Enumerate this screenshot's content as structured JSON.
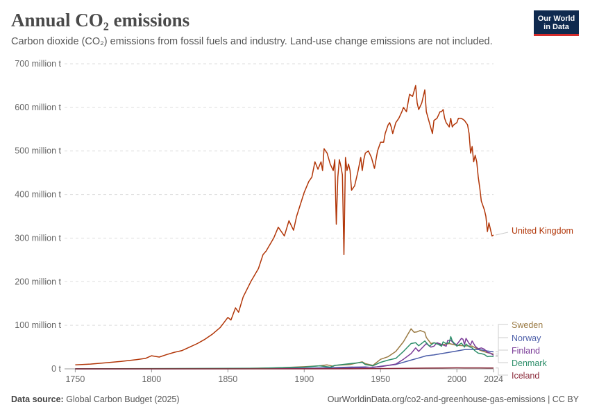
{
  "header": {
    "title": "Annual CO₂ emissions",
    "subtitle": "Carbon dioxide (CO₂) emissions from fossil fuels and industry. Land-use change emissions are not included."
  },
  "logo": {
    "line1": "Our World",
    "line2": "in Data",
    "bg_color": "#0f2a4f",
    "accent_color": "#d42b2b"
  },
  "footer": {
    "source_label": "Data source:",
    "source_value": "Global Carbon Budget (2025)",
    "url": "OurWorldinData.org/co2-and-greenhouse-gas-emissions | CC BY"
  },
  "chart_data": {
    "type": "line",
    "title": "Annual CO₂ emissions",
    "ylim": [
      0,
      700000000
    ],
    "xlim": [
      1743,
      2024
    ],
    "y_ticks": [
      0,
      100000000,
      200000000,
      300000000,
      400000000,
      500000000,
      600000000,
      700000000
    ],
    "y_tick_labels": [
      "0 t",
      "100 million t",
      "200 million t",
      "300 million t",
      "400 million t",
      "500 million t",
      "600 million t",
      "700 million t"
    ],
    "x_ticks": [
      1750,
      1800,
      1850,
      1900,
      1950,
      2000,
      2024
    ],
    "x_tick_labels": [
      "1750",
      "1800",
      "1850",
      "1900",
      "1950",
      "2000",
      "2024"
    ],
    "grid": true,
    "legend": "right (end-of-line labels)",
    "series": [
      {
        "name": "United Kingdom",
        "color": "#b13507",
        "points": [
          [
            1750,
            9000000
          ],
          [
            1760,
            11000000
          ],
          [
            1770,
            14000000
          ],
          [
            1780,
            17000000
          ],
          [
            1790,
            21000000
          ],
          [
            1796,
            24000000
          ],
          [
            1800,
            30000000
          ],
          [
            1805,
            27000000
          ],
          [
            1810,
            33000000
          ],
          [
            1815,
            38000000
          ],
          [
            1820,
            42000000
          ],
          [
            1825,
            50000000
          ],
          [
            1830,
            58000000
          ],
          [
            1835,
            68000000
          ],
          [
            1840,
            80000000
          ],
          [
            1845,
            95000000
          ],
          [
            1850,
            118000000
          ],
          [
            1852,
            112000000
          ],
          [
            1855,
            140000000
          ],
          [
            1857,
            130000000
          ],
          [
            1860,
            165000000
          ],
          [
            1865,
            200000000
          ],
          [
            1870,
            230000000
          ],
          [
            1873,
            262000000
          ],
          [
            1875,
            270000000
          ],
          [
            1880,
            300000000
          ],
          [
            1883,
            325000000
          ],
          [
            1887,
            305000000
          ],
          [
            1890,
            340000000
          ],
          [
            1893,
            318000000
          ],
          [
            1895,
            350000000
          ],
          [
            1900,
            405000000
          ],
          [
            1903,
            430000000
          ],
          [
            1905,
            440000000
          ],
          [
            1907,
            475000000
          ],
          [
            1909,
            458000000
          ],
          [
            1911,
            475000000
          ],
          [
            1912,
            455000000
          ],
          [
            1913,
            505000000
          ],
          [
            1915,
            495000000
          ],
          [
            1917,
            470000000
          ],
          [
            1919,
            455000000
          ],
          [
            1920,
            480000000
          ],
          [
            1921,
            332000000
          ],
          [
            1922,
            440000000
          ],
          [
            1923,
            480000000
          ],
          [
            1924,
            465000000
          ],
          [
            1925,
            445000000
          ],
          [
            1926,
            262000000
          ],
          [
            1927,
            485000000
          ],
          [
            1928,
            455000000
          ],
          [
            1929,
            470000000
          ],
          [
            1930,
            455000000
          ],
          [
            1931,
            410000000
          ],
          [
            1933,
            420000000
          ],
          [
            1935,
            450000000
          ],
          [
            1937,
            485000000
          ],
          [
            1938,
            455000000
          ],
          [
            1939,
            480000000
          ],
          [
            1940,
            495000000
          ],
          [
            1942,
            500000000
          ],
          [
            1944,
            485000000
          ],
          [
            1946,
            460000000
          ],
          [
            1947,
            480000000
          ],
          [
            1948,
            500000000
          ],
          [
            1950,
            520000000
          ],
          [
            1952,
            520000000
          ],
          [
            1953,
            540000000
          ],
          [
            1955,
            560000000
          ],
          [
            1956,
            565000000
          ],
          [
            1957,
            555000000
          ],
          [
            1958,
            540000000
          ],
          [
            1960,
            565000000
          ],
          [
            1962,
            575000000
          ],
          [
            1964,
            590000000
          ],
          [
            1965,
            600000000
          ],
          [
            1967,
            590000000
          ],
          [
            1969,
            630000000
          ],
          [
            1971,
            625000000
          ],
          [
            1973,
            650000000
          ],
          [
            1974,
            610000000
          ],
          [
            1975,
            595000000
          ],
          [
            1977,
            610000000
          ],
          [
            1979,
            640000000
          ],
          [
            1980,
            590000000
          ],
          [
            1982,
            565000000
          ],
          [
            1984,
            540000000
          ],
          [
            1985,
            570000000
          ],
          [
            1987,
            575000000
          ],
          [
            1989,
            590000000
          ],
          [
            1990,
            590000000
          ],
          [
            1991,
            595000000
          ],
          [
            1992,
            575000000
          ],
          [
            1993,
            565000000
          ],
          [
            1995,
            555000000
          ],
          [
            1996,
            575000000
          ],
          [
            1997,
            555000000
          ],
          [
            1998,
            560000000
          ],
          [
            2000,
            565000000
          ],
          [
            2001,
            575000000
          ],
          [
            2003,
            575000000
          ],
          [
            2005,
            570000000
          ],
          [
            2006,
            565000000
          ],
          [
            2007,
            560000000
          ],
          [
            2008,
            540000000
          ],
          [
            2009,
            495000000
          ],
          [
            2010,
            510000000
          ],
          [
            2011,
            475000000
          ],
          [
            2012,
            490000000
          ],
          [
            2013,
            475000000
          ],
          [
            2014,
            440000000
          ],
          [
            2015,
            415000000
          ],
          [
            2016,
            385000000
          ],
          [
            2017,
            375000000
          ],
          [
            2018,
            365000000
          ],
          [
            2019,
            350000000
          ],
          [
            2020,
            315000000
          ],
          [
            2021,
            335000000
          ],
          [
            2022,
            320000000
          ],
          [
            2023,
            305000000
          ],
          [
            2024,
            307000000
          ]
        ]
      },
      {
        "name": "Sweden",
        "color": "#9a7a43",
        "points": [
          [
            1750,
            0
          ],
          [
            1850,
            500000
          ],
          [
            1880,
            2000000
          ],
          [
            1900,
            5000000
          ],
          [
            1910,
            7000000
          ],
          [
            1915,
            9000000
          ],
          [
            1919,
            6000000
          ],
          [
            1920,
            8000000
          ],
          [
            1930,
            10000000
          ],
          [
            1938,
            16000000
          ],
          [
            1940,
            12000000
          ],
          [
            1945,
            8000000
          ],
          [
            1950,
            22000000
          ],
          [
            1955,
            28000000
          ],
          [
            1960,
            40000000
          ],
          [
            1965,
            62000000
          ],
          [
            1968,
            80000000
          ],
          [
            1970,
            92000000
          ],
          [
            1972,
            84000000
          ],
          [
            1974,
            85000000
          ],
          [
            1976,
            88000000
          ],
          [
            1979,
            84000000
          ],
          [
            1980,
            72000000
          ],
          [
            1983,
            58000000
          ],
          [
            1985,
            60000000
          ],
          [
            1990,
            55000000
          ],
          [
            1995,
            58000000
          ],
          [
            2000,
            54000000
          ],
          [
            2005,
            53000000
          ],
          [
            2010,
            52000000
          ],
          [
            2015,
            43000000
          ],
          [
            2020,
            37000000
          ],
          [
            2024,
            34000000
          ]
        ]
      },
      {
        "name": "Norway",
        "color": "#4b5da8",
        "points": [
          [
            1750,
            0
          ],
          [
            1870,
            300000
          ],
          [
            1900,
            1500000
          ],
          [
            1920,
            3000000
          ],
          [
            1930,
            4000000
          ],
          [
            1940,
            4500000
          ],
          [
            1945,
            3000000
          ],
          [
            1950,
            6000000
          ],
          [
            1960,
            10000000
          ],
          [
            1970,
            20000000
          ],
          [
            1975,
            25000000
          ],
          [
            1980,
            30000000
          ],
          [
            1985,
            32000000
          ],
          [
            1990,
            35000000
          ],
          [
            1995,
            38000000
          ],
          [
            2000,
            41000000
          ],
          [
            2005,
            44000000
          ],
          [
            2010,
            45000000
          ],
          [
            2015,
            44000000
          ],
          [
            2020,
            41000000
          ],
          [
            2024,
            39000000
          ]
        ]
      },
      {
        "name": "Finland",
        "color": "#7a3b97",
        "points": [
          [
            1750,
            0
          ],
          [
            1900,
            500000
          ],
          [
            1920,
            1000000
          ],
          [
            1930,
            2000000
          ],
          [
            1940,
            3000000
          ],
          [
            1950,
            5000000
          ],
          [
            1960,
            11000000
          ],
          [
            1965,
            22000000
          ],
          [
            1970,
            35000000
          ],
          [
            1973,
            48000000
          ],
          [
            1975,
            40000000
          ],
          [
            1980,
            58000000
          ],
          [
            1983,
            50000000
          ],
          [
            1985,
            52000000
          ],
          [
            1987,
            60000000
          ],
          [
            1990,
            56000000
          ],
          [
            1993,
            52000000
          ],
          [
            1994,
            65000000
          ],
          [
            1996,
            66000000
          ],
          [
            1998,
            58000000
          ],
          [
            2000,
            56000000
          ],
          [
            2003,
            70000000
          ],
          [
            2004,
            68000000
          ],
          [
            2005,
            56000000
          ],
          [
            2006,
            70000000
          ],
          [
            2008,
            58000000
          ],
          [
            2009,
            55000000
          ],
          [
            2010,
            64000000
          ],
          [
            2012,
            52000000
          ],
          [
            2014,
            46000000
          ],
          [
            2016,
            48000000
          ],
          [
            2018,
            45000000
          ],
          [
            2020,
            38000000
          ],
          [
            2022,
            36000000
          ],
          [
            2024,
            31000000
          ]
        ]
      },
      {
        "name": "Denmark",
        "color": "#2d8e6a",
        "points": [
          [
            1750,
            0
          ],
          [
            1870,
            1500000
          ],
          [
            1900,
            4000000
          ],
          [
            1910,
            7000000
          ],
          [
            1917,
            4000000
          ],
          [
            1920,
            8000000
          ],
          [
            1930,
            12000000
          ],
          [
            1938,
            15000000
          ],
          [
            1940,
            10000000
          ],
          [
            1945,
            7000000
          ],
          [
            1950,
            15000000
          ],
          [
            1955,
            20000000
          ],
          [
            1960,
            24000000
          ],
          [
            1965,
            40000000
          ],
          [
            1970,
            58000000
          ],
          [
            1973,
            60000000
          ],
          [
            1975,
            53000000
          ],
          [
            1979,
            64000000
          ],
          [
            1982,
            52000000
          ],
          [
            1985,
            60000000
          ],
          [
            1988,
            56000000
          ],
          [
            1990,
            52000000
          ],
          [
            1991,
            62000000
          ],
          [
            1993,
            58000000
          ],
          [
            1995,
            60000000
          ],
          [
            1996,
            74000000
          ],
          [
            1997,
            64000000
          ],
          [
            2000,
            52000000
          ],
          [
            2003,
            59000000
          ],
          [
            2005,
            50000000
          ],
          [
            2006,
            57000000
          ],
          [
            2008,
            51000000
          ],
          [
            2010,
            48000000
          ],
          [
            2012,
            41000000
          ],
          [
            2014,
            36000000
          ],
          [
            2016,
            35000000
          ],
          [
            2018,
            33000000
          ],
          [
            2020,
            28000000
          ],
          [
            2022,
            29000000
          ],
          [
            2024,
            28000000
          ]
        ]
      },
      {
        "name": "Iceland",
        "color": "#8b2b3b",
        "points": [
          [
            1750,
            0
          ],
          [
            1900,
            50000
          ],
          [
            1940,
            300000
          ],
          [
            1950,
            700000
          ],
          [
            1960,
            1000000
          ],
          [
            1970,
            1500000
          ],
          [
            1980,
            1800000
          ],
          [
            1990,
            2100000
          ],
          [
            2000,
            2400000
          ],
          [
            2005,
            2300000
          ],
          [
            2010,
            2300000
          ],
          [
            2015,
            2200000
          ],
          [
            2020,
            2000000
          ],
          [
            2024,
            2100000
          ]
        ]
      }
    ]
  }
}
